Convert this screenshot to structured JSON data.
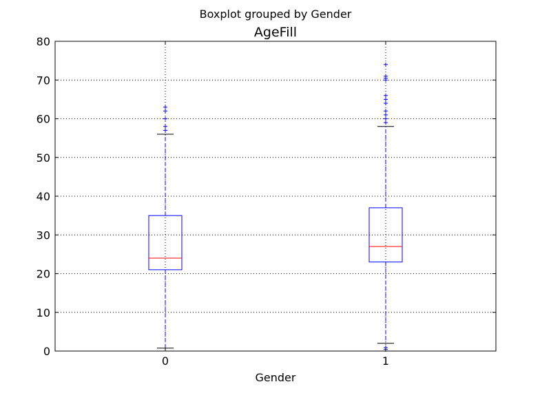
{
  "chart_data": {
    "type": "boxplot",
    "suptitle": "Boxplot grouped by Gender",
    "title": "AgeFill",
    "xlabel": "Gender",
    "ylabel": "",
    "categories": [
      "0",
      "1"
    ],
    "ylim": [
      0,
      80
    ],
    "yticks": [
      "0",
      "10",
      "20",
      "30",
      "40",
      "50",
      "60",
      "70",
      "80"
    ],
    "grid": true,
    "colors": {
      "box": "#0000ff",
      "median": "#ff0000",
      "whisker": "#0000ff",
      "cap": "#000000",
      "flier": "#0000ff",
      "grid": "#000000"
    },
    "boxes": [
      {
        "category": "0",
        "whisker_low": 0.75,
        "q1": 21,
        "median": 24,
        "q3": 35,
        "whisker_high": 56,
        "fliers": [
          57,
          58,
          60,
          62,
          63
        ]
      },
      {
        "category": "1",
        "whisker_low": 2,
        "q1": 23,
        "median": 27,
        "q3": 37,
        "whisker_high": 58,
        "fliers": [
          0.4,
          0.9,
          59,
          60,
          61,
          62,
          64,
          65,
          66,
          70,
          70.5,
          71,
          74
        ]
      }
    ]
  }
}
